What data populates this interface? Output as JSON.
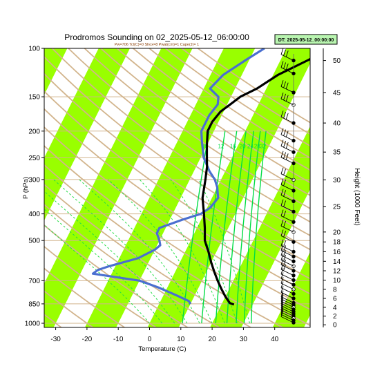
{
  "chart_data": {
    "type": "skew-t",
    "title": "Prodromos Sounding on 02_2025-05-12_06:00:00",
    "subtitle": "Pw=706 Tcl(C)=0 Shox=8 Pwat(cm)=1 Cape(J)= 1",
    "xlabel": "Temperature (C)",
    "ylabel": "P (hPa)",
    "y2label": "Height (1000 Feet)",
    "datetime_badge": "DT: 2025-05-12_00:00:00",
    "temp_ticks": [
      "-30",
      "-20",
      "-10",
      "0",
      "10",
      "20",
      "30",
      "40"
    ],
    "pressure_ticks": [
      "100",
      "150",
      "200",
      "250",
      "300",
      "400",
      "500",
      "700",
      "850",
      "1000"
    ],
    "height_ticks": [
      "50",
      "45",
      "40",
      "35",
      "30",
      "25",
      "20",
      "18",
      "16",
      "14",
      "12",
      "10",
      "8",
      "6",
      "4",
      "2",
      "0"
    ],
    "mixing_ratio_labels": [
      "8",
      "12",
      "16",
      "20",
      "24",
      "28",
      "32"
    ],
    "temperature_profile": [
      {
        "p": 855,
        "t": 24
      },
      {
        "p": 845,
        "t": 22.5
      },
      {
        "p": 800,
        "t": 20
      },
      {
        "p": 750,
        "t": 17.5
      },
      {
        "p": 700,
        "t": 15
      },
      {
        "p": 650,
        "t": 12.5
      },
      {
        "p": 600,
        "t": 10
      },
      {
        "p": 550,
        "t": 7.5
      },
      {
        "p": 500,
        "t": 4.5
      },
      {
        "p": 450,
        "t": 2.5
      },
      {
        "p": 400,
        "t": 0
      },
      {
        "p": 350,
        "t": -3
      },
      {
        "p": 300,
        "t": -5
      },
      {
        "p": 270,
        "t": -6.5
      },
      {
        "p": 250,
        "t": -8
      },
      {
        "p": 225,
        "t": -10
      },
      {
        "p": 200,
        "t": -12
      },
      {
        "p": 185,
        "t": -12
      },
      {
        "p": 170,
        "t": -11
      },
      {
        "p": 160,
        "t": -9
      },
      {
        "p": 150,
        "t": -7
      },
      {
        "p": 140,
        "t": -3
      },
      {
        "p": 125,
        "t": 1.5
      },
      {
        "p": 110,
        "t": 9
      },
      {
        "p": 100,
        "t": 14
      }
    ],
    "dewpoint_profile": [
      {
        "p": 850,
        "t": 10
      },
      {
        "p": 830,
        "t": 9
      },
      {
        "p": 790,
        "t": 4
      },
      {
        "p": 740,
        "t": -3
      },
      {
        "p": 700,
        "t": -10
      },
      {
        "p": 660,
        "t": -26
      },
      {
        "p": 640,
        "t": -25
      },
      {
        "p": 620,
        "t": -22
      },
      {
        "p": 580,
        "t": -14
      },
      {
        "p": 540,
        "t": -10
      },
      {
        "p": 520,
        "t": -9
      },
      {
        "p": 500,
        "t": -10
      },
      {
        "p": 470,
        "t": -12
      },
      {
        "p": 450,
        "t": -12
      },
      {
        "p": 420,
        "t": -6
      },
      {
        "p": 400,
        "t": -1
      },
      {
        "p": 380,
        "t": 1
      },
      {
        "p": 350,
        "t": 2
      },
      {
        "p": 320,
        "t": 0
      },
      {
        "p": 300,
        "t": -2
      },
      {
        "p": 280,
        "t": -5
      },
      {
        "p": 250,
        "t": -9
      },
      {
        "p": 220,
        "t": -12
      },
      {
        "p": 200,
        "t": -14
      },
      {
        "p": 175,
        "t": -14
      },
      {
        "p": 160,
        "t": -13
      },
      {
        "p": 150,
        "t": -14
      },
      {
        "p": 140,
        "t": -18
      },
      {
        "p": 125,
        "t": -16
      },
      {
        "p": 110,
        "t": -11
      },
      {
        "p": 100,
        "t": -7
      }
    ],
    "colors": {
      "temperature": "#000000",
      "dewpoint": "#4a6fd0",
      "dry_adiabat": "#d2b48c",
      "band": "#99ff00",
      "mixing_ratio": "#00dd44",
      "moist_adiabat": "#22dd44",
      "badge_bg": "#b9f5b0"
    },
    "wind_levels_kft": [
      50,
      48,
      45,
      43,
      40,
      37,
      35,
      33,
      30,
      28,
      26,
      24,
      22,
      20,
      18,
      16,
      15,
      14,
      13,
      12,
      11,
      10,
      9,
      8,
      7,
      6,
      5,
      4.5,
      4,
      3.5,
      3,
      2.5,
      2,
      1.5,
      1,
      0.5
    ],
    "grid": true
  }
}
